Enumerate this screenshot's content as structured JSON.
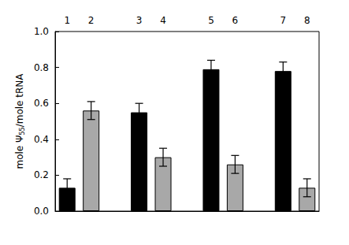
{
  "chart_data": {
    "type": "bar",
    "ylabel": "mole Ψ55/mole tRNA",
    "categories": [
      "1",
      "2",
      null,
      "3",
      "4",
      null,
      "5",
      "6",
      null,
      "7",
      "8"
    ],
    "values": [
      0.13,
      0.56,
      null,
      0.55,
      0.3,
      null,
      0.79,
      0.26,
      null,
      0.78,
      0.13
    ],
    "errors": [
      0.05,
      0.05,
      null,
      0.05,
      0.05,
      null,
      0.05,
      0.05,
      null,
      0.05,
      0.05
    ],
    "colors": [
      "#000000",
      "#a8a8a8",
      null,
      "#000000",
      "#a8a8a8",
      null,
      "#000000",
      "#a8a8a8",
      null,
      "#000000",
      "#a8a8a8"
    ],
    "ylim": [
      0,
      1.0
    ],
    "yticks": [
      {
        "value": 0,
        "label": "0.0"
      },
      {
        "value": 0.2,
        "label": "0.2"
      },
      {
        "value": 0.4,
        "label": "0.4"
      },
      {
        "value": 0.6,
        "label": "0.6"
      },
      {
        "value": 0.8,
        "label": "0.8"
      },
      {
        "value": 1.0,
        "label": "1.0"
      }
    ],
    "grid": false
  }
}
